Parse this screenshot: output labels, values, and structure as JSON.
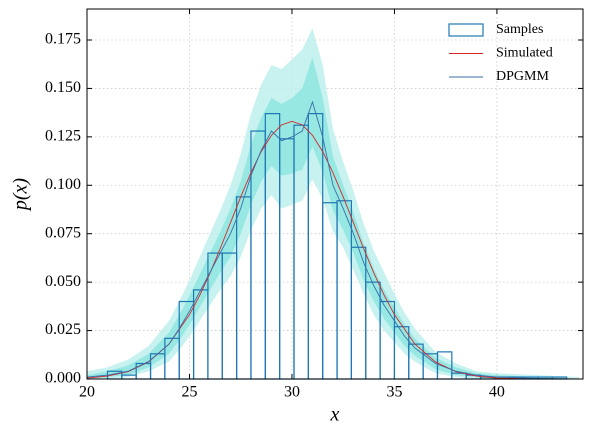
{
  "chart_data": {
    "type": "histogram",
    "xlabel": "x",
    "ylabel": "p(x)",
    "xlim": [
      20,
      44.2
    ],
    "ylim": [
      0,
      0.191
    ],
    "xticks": [
      20,
      25,
      30,
      35,
      40
    ],
    "yticks": [
      {
        "value": 0,
        "label": "0.000"
      },
      {
        "value": 0.025,
        "label": "0.025"
      },
      {
        "value": 0.05,
        "label": "0.050"
      },
      {
        "value": 0.075,
        "label": "0.075"
      },
      {
        "value": 0.1,
        "label": "0.100"
      },
      {
        "value": 0.125,
        "label": "0.125"
      },
      {
        "value": 0.15,
        "label": "0.150"
      },
      {
        "value": 0.175,
        "label": "0.175"
      }
    ],
    "grid": true,
    "legend": "upper right",
    "bins": [
      21.0,
      21.7,
      22.4,
      23.1,
      23.8,
      24.5,
      25.2,
      25.9,
      26.6,
      27.3,
      28.0,
      28.7,
      29.4,
      30.1,
      30.8,
      31.5,
      32.2,
      32.9,
      33.6,
      34.3,
      35.0,
      35.7,
      36.4,
      37.1,
      37.8,
      38.5,
      39.2,
      39.9,
      40.6,
      41.3,
      42.0,
      42.7,
      43.4
    ],
    "series": [
      {
        "name": "Samples",
        "color": "#1f77b4",
        "values": [
          0.004,
          0.002,
          0.008,
          0.013,
          0.021,
          0.04,
          0.046,
          0.065,
          0.065,
          0.094,
          0.128,
          0.137,
          0.124,
          0.131,
          0.137,
          0.091,
          0.092,
          0.068,
          0.05,
          0.04,
          0.027,
          0.018,
          0.013,
          0.014,
          0.003,
          0.002,
          0.001,
          0.001,
          0.001,
          0.001,
          0.001,
          0.001
        ]
      }
    ],
    "lines": [
      {
        "name": "Simulated",
        "color": "#d62728",
        "x": [
          20,
          21,
          22,
          23,
          24,
          25,
          25.5,
          26,
          26.5,
          27,
          27.5,
          28,
          28.5,
          29,
          29.5,
          30,
          30.5,
          31,
          31.5,
          32,
          32.5,
          33,
          33.5,
          34,
          34.5,
          35,
          36,
          37,
          38,
          39,
          40,
          41,
          42,
          43,
          44
        ],
        "values": [
          0.0005,
          0.0015,
          0.0038,
          0.0088,
          0.018,
          0.0332,
          0.0432,
          0.0546,
          0.0673,
          0.0807,
          0.094,
          0.1065,
          0.1174,
          0.1258,
          0.1312,
          0.133,
          0.1312,
          0.1258,
          0.1174,
          0.1065,
          0.094,
          0.0807,
          0.0673,
          0.0546,
          0.0432,
          0.0332,
          0.018,
          0.0088,
          0.0038,
          0.0015,
          0.0005,
          0.0002,
          0.0001,
          0,
          0
        ]
      },
      {
        "name": "DPGMM",
        "color": "#3a6fa8",
        "x": [
          20,
          21,
          22,
          23,
          24,
          24.5,
          25,
          25.5,
          26,
          26.5,
          27,
          27.5,
          28,
          28.5,
          29,
          29.5,
          30,
          30.5,
          31,
          31.5,
          32,
          32.5,
          33,
          33.5,
          34,
          34.5,
          35,
          35.5,
          36,
          37,
          38,
          39,
          40,
          42,
          44
        ],
        "values": [
          0.001,
          0.002,
          0.004,
          0.009,
          0.018,
          0.026,
          0.035,
          0.045,
          0.055,
          0.065,
          0.075,
          0.088,
          0.105,
          0.118,
          0.128,
          0.123,
          0.125,
          0.128,
          0.143,
          0.125,
          0.1,
          0.088,
          0.075,
          0.06,
          0.048,
          0.038,
          0.03,
          0.022,
          0.016,
          0.008,
          0.004,
          0.002,
          0.001,
          0.0003,
          0
        ],
        "bands": [
          {
            "color": "#bdf0ec",
            "lower": [
              0,
              0,
              0.001,
              0.004,
              0.009,
              0.015,
              0.022,
              0.03,
              0.038,
              0.046,
              0.053,
              0.063,
              0.077,
              0.088,
              0.095,
              0.088,
              0.09,
              0.092,
              0.103,
              0.093,
              0.076,
              0.068,
              0.056,
              0.044,
              0.033,
              0.025,
              0.019,
              0.013,
              0.009,
              0.003,
              0.001,
              0,
              0,
              0,
              0
            ],
            "upper": [
              0.004,
              0.006,
              0.01,
              0.017,
              0.03,
              0.04,
              0.051,
              0.063,
              0.075,
              0.087,
              0.1,
              0.116,
              0.137,
              0.152,
              0.162,
              0.16,
              0.165,
              0.17,
              0.181,
              0.162,
              0.129,
              0.112,
              0.097,
              0.08,
              0.066,
              0.055,
              0.044,
              0.034,
              0.026,
              0.014,
              0.008,
              0.004,
              0.003,
              0.002,
              0.001
            ]
          },
          {
            "color": "#8ee6df",
            "lower": [
              0,
              0.001,
              0.002,
              0.006,
              0.013,
              0.02,
              0.028,
              0.037,
              0.046,
              0.055,
              0.063,
              0.075,
              0.09,
              0.102,
              0.11,
              0.105,
              0.106,
              0.108,
              0.12,
              0.107,
              0.087,
              0.077,
              0.065,
              0.051,
              0.04,
              0.031,
              0.024,
              0.017,
              0.012,
              0.005,
              0.002,
              0.001,
              0,
              0,
              0
            ],
            "upper": [
              0.002,
              0.004,
              0.007,
              0.013,
              0.024,
              0.033,
              0.043,
              0.054,
              0.065,
              0.076,
              0.088,
              0.102,
              0.121,
              0.135,
              0.145,
              0.142,
              0.145,
              0.15,
              0.166,
              0.145,
              0.115,
              0.1,
              0.086,
              0.07,
              0.057,
              0.046,
              0.037,
              0.028,
              0.021,
              0.011,
              0.006,
              0.003,
              0.002,
              0.001,
              0
            ]
          }
        ]
      }
    ]
  }
}
